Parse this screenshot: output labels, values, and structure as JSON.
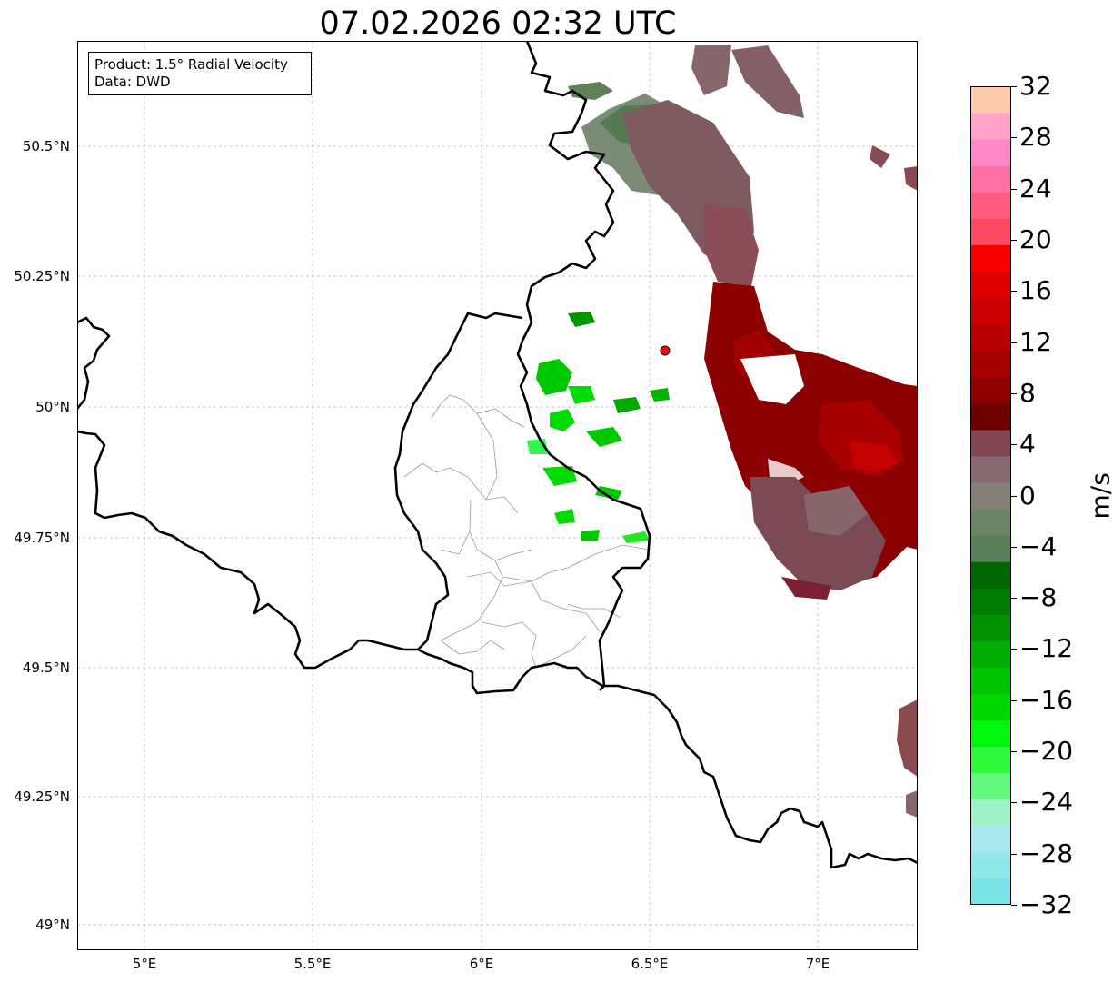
{
  "title": "07.02.2026 02:32 UTC",
  "info_box": {
    "line1": "Product: 1.5° Radial Velocity",
    "line2": "Data: DWD"
  },
  "axes": {
    "lat_ticks": [
      "50.5°N",
      "50.25°N",
      "50°N",
      "49.75°N",
      "49.5°N",
      "49.25°N",
      "49°N"
    ],
    "lon_ticks": [
      "5°E",
      "5.5°E",
      "6°E",
      "6.5°E",
      "7°E"
    ],
    "grid": true,
    "lon_range": [
      4.8,
      7.3
    ],
    "lat_range": [
      48.95,
      50.7
    ]
  },
  "radar_site": {
    "lon": 6.55,
    "lat": 50.11,
    "color": "#ff0000"
  },
  "colorbar": {
    "unit": "m/s",
    "ticks": [
      "32",
      "28",
      "24",
      "20",
      "16",
      "12",
      "8",
      "4",
      "0",
      "−4",
      "−8",
      "−12",
      "−16",
      "−20",
      "−24",
      "−28",
      "−32"
    ],
    "range": [
      -32,
      32
    ],
    "colors_bottom_to_top": [
      "#7ae4e8",
      "#8ee8ea",
      "#a9e9ee",
      "#9ef2c8",
      "#63f77d",
      "#2ffa3c",
      "#00f70d",
      "#00d900",
      "#00c300",
      "#00ad00",
      "#009100",
      "#007b00",
      "#006700",
      "#597f5b",
      "#6c8567",
      "#858075",
      "#876a71",
      "#824652",
      "#6f0000",
      "#8e0000",
      "#a70000",
      "#b90000",
      "#cc0000",
      "#de0000",
      "#f90000",
      "#ff4762",
      "#ff5a80",
      "#ff6fa3",
      "#ff88c9",
      "#ffa4c8",
      "#ffcbae"
    ]
  }
}
